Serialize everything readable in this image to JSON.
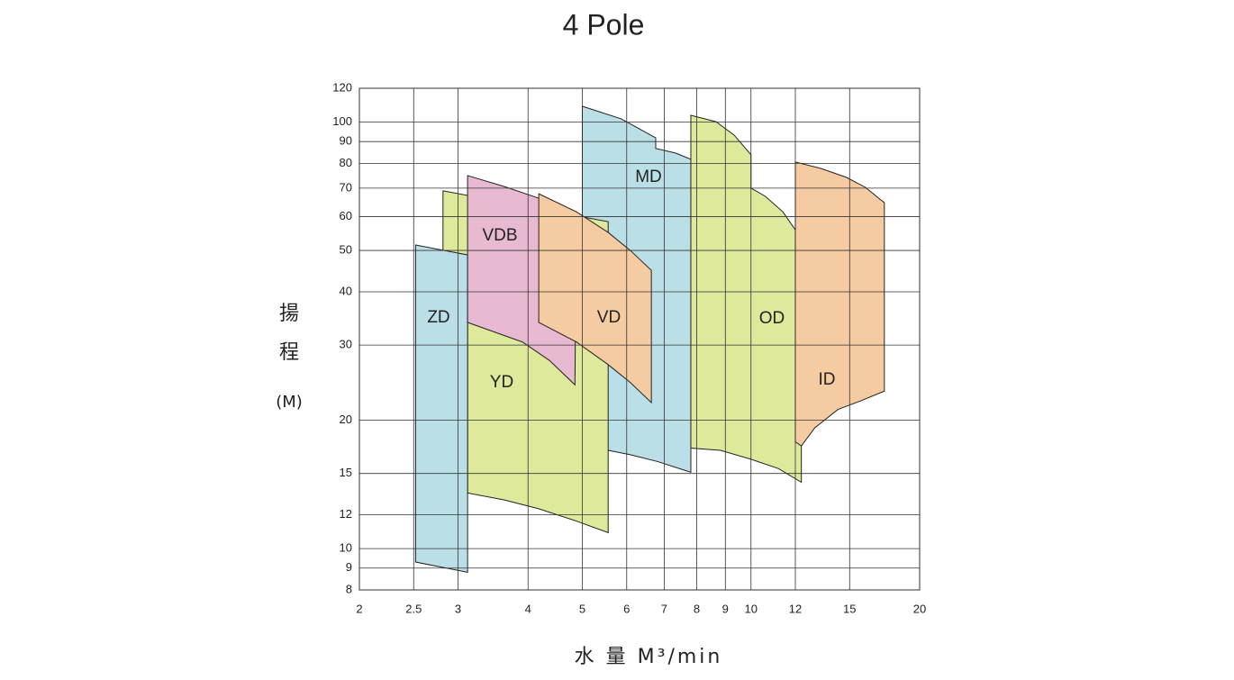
{
  "chart_data": {
    "type": "area",
    "title": "4 Pole",
    "x_label": "水 量 M³/min",
    "y_label": [
      "揚",
      "程",
      "(M)"
    ],
    "xlog": true,
    "ylog": true,
    "grid": true,
    "xlim": [
      2,
      20
    ],
    "ylim": [
      8,
      120
    ],
    "xticks": [
      2,
      2.5,
      3,
      4,
      5,
      6,
      7,
      8,
      9,
      10,
      12,
      15,
      20
    ],
    "yticks": [
      8,
      9,
      10,
      12,
      15,
      20,
      30,
      40,
      50,
      60,
      70,
      80,
      90,
      100,
      120
    ],
    "series": [
      {
        "name": "MD",
        "color": "#badfe6",
        "x": [
          5.0,
          5.87,
          6.76,
          6.76,
          7.33,
          7.81,
          7.81,
          6.81,
          6.09,
          5.56,
          5.0
        ],
        "y": [
          108.9,
          101.7,
          91.8,
          86.7,
          84.6,
          81.8,
          15.1,
          16.0,
          16.6,
          17.0,
          17.0
        ]
      },
      {
        "name": "YD",
        "color": "#dee99c",
        "x": [
          2.82,
          5.56,
          5.56,
          4.88,
          4.18,
          3.63,
          3.12,
          3.12,
          2.82
        ],
        "y": [
          69.0,
          58.4,
          10.9,
          11.6,
          12.4,
          13.0,
          13.5,
          48.8,
          50.0
        ]
      },
      {
        "name": "ZD",
        "color": "#badfe6",
        "x": [
          2.52,
          3.12,
          3.12,
          2.52
        ],
        "y": [
          51.5,
          48.8,
          8.8,
          9.3
        ]
      },
      {
        "name": "VDB",
        "color": "#e8bad2",
        "x": [
          3.12,
          3.63,
          4.18,
          4.88,
          4.85,
          4.37,
          3.91,
          3.12
        ],
        "y": [
          74.9,
          70.6,
          66.3,
          60.8,
          24.2,
          27.6,
          30.5,
          33.9
        ]
      },
      {
        "name": "VD",
        "color": "#f5cca2",
        "x": [
          4.18,
          4.88,
          5.56,
          6.09,
          6.64,
          6.64,
          6.09,
          5.56,
          4.88,
          4.18
        ],
        "y": [
          67.9,
          61.6,
          55.1,
          50.0,
          44.9,
          22.0,
          24.5,
          27.0,
          30.5,
          33.9
        ]
      },
      {
        "name": "OD",
        "color": "#dee99c",
        "x": [
          7.81,
          8.66,
          9.33,
          10,
          10,
          10.6,
          11.4,
          12.3,
          12.3,
          11.2,
          10,
          8.82,
          7.81
        ],
        "y": [
          103.7,
          100.2,
          93.2,
          83.8,
          70.0,
          67.0,
          61.6,
          53.3,
          14.3,
          15.4,
          16.2,
          17.0,
          17.2
        ]
      },
      {
        "name": "ID",
        "color": "#f5cca2",
        "x": [
          12.0,
          13.3,
          14.8,
          16.0,
          17.3,
          17.3,
          15.7,
          14.3,
          13.0,
          12.3,
          12.0
        ],
        "y": [
          80.6,
          77.9,
          74.2,
          70.3,
          64.7,
          23.4,
          22.2,
          21.2,
          19.2,
          17.4,
          17.8
        ]
      }
    ]
  }
}
